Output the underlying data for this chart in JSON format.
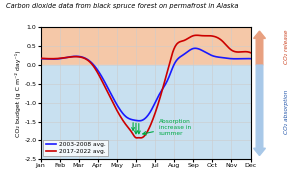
{
  "title": "Carbon dioxide data from black spruce forest on permafrost in Alaska",
  "ylabel": "CO₂ budget (g C m⁻² day⁻¹)",
  "xlim": [
    0,
    12
  ],
  "ylim": [
    -2.5,
    1.0
  ],
  "months": [
    "Jan",
    "Feb",
    "Mar",
    "Apr",
    "May",
    "Jun",
    "Jul",
    "Aug",
    "Sep",
    "Oct",
    "Nov",
    "Dec"
  ],
  "series1_label": "2003-2008 avg.",
  "series1_color": "#1a1aff",
  "series2_label": "2017-2022 avg.",
  "series2_color": "#cc0000",
  "annotation_text": "Absorption\nincrease in\nsummer",
  "annotation_color": "#00aa44",
  "grid_color": "#cccccc",
  "bg_upper_color": "#f5c8a8",
  "bg_lower_color": "#c8e0f0",
  "right_arrow_up_color": "#e8a080",
  "right_arrow_down_color": "#a8c8e8",
  "right_text_up": "CO₂ release",
  "right_text_down": "CO₂ absorption"
}
